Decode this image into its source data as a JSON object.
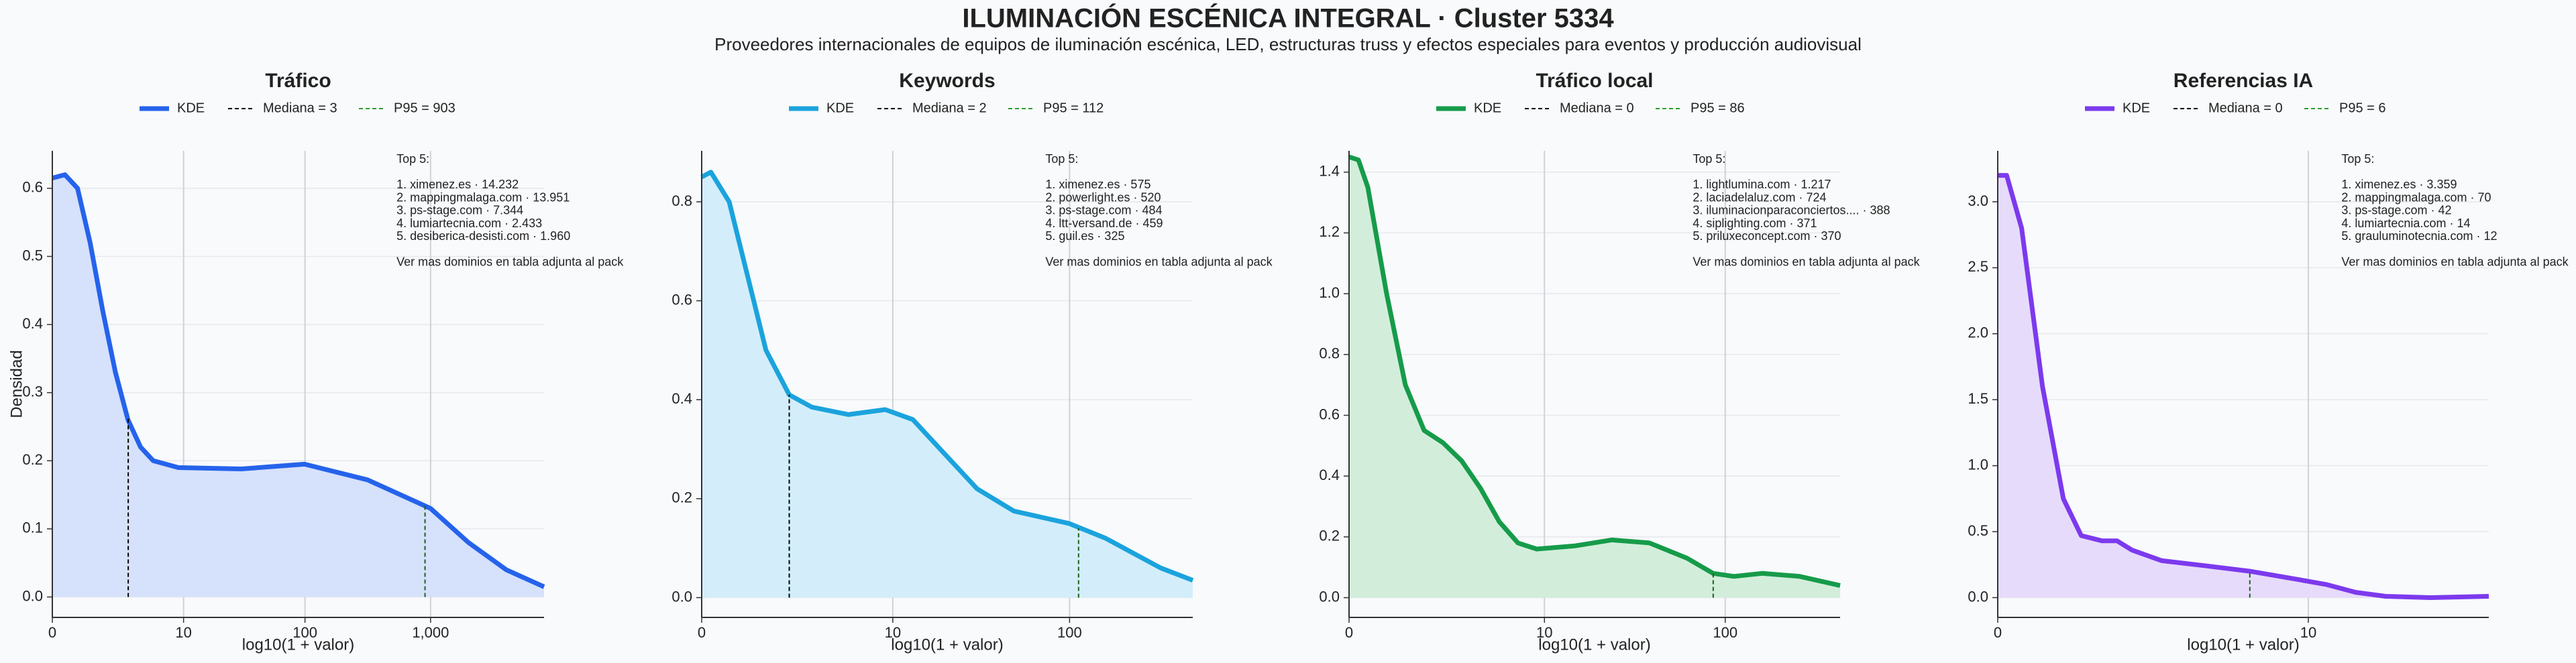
{
  "title": "ILUMINACIÓN ESCÉNICA INTEGRAL · Cluster 5334",
  "subtitle": "Proveedores internacionales de equipos de iluminación escénica, LED, estructuras truss y efectos especiales para eventos y producción audiovisual",
  "chart_data": [
    {
      "type": "area",
      "title": "Tráfico",
      "xlabel": "log10(1 + valor)",
      "ylabel": "Densidad",
      "grid": true,
      "xlim": [
        0,
        3.9
      ],
      "ylim": [
        -0.03,
        0.655
      ],
      "xticks": [
        0,
        {
          "value": 1.041,
          "label": "10"
        },
        {
          "value": 2.004,
          "label": "100"
        },
        {
          "value": 3.0,
          "label": "1,000"
        }
      ],
      "yticks": [
        {
          "value": 0,
          "label": "0.0"
        },
        0.1,
        0.2,
        0.3,
        0.4,
        0.5,
        0.6
      ],
      "x": [
        0,
        0.1,
        0.2,
        0.3,
        0.4,
        0.5,
        0.6,
        0.7,
        0.8,
        1.0,
        1.5,
        2.0,
        2.5,
        3.0,
        3.3,
        3.6,
        3.9
      ],
      "series": [
        {
          "name": "KDE",
          "color": "#2563eb",
          "fill": "#d6e1fb",
          "values": [
            0.615,
            0.62,
            0.6,
            0.52,
            0.42,
            0.33,
            0.26,
            0.22,
            0.2,
            0.19,
            0.188,
            0.195,
            0.172,
            0.13,
            0.08,
            0.04,
            0.015
          ]
        }
      ],
      "reference_lines": [
        {
          "name": "Mediana = 3",
          "x": 0.602,
          "y": 0.263,
          "color": "#000000"
        },
        {
          "name": "P95 = 903",
          "x": 2.956,
          "y": 0.135,
          "color": "#2ca02c"
        }
      ],
      "annotation": [
        "Top 5:",
        "",
        "1. ximenez.es · 14.232",
        "2. mappingmalaga.com · 13.951",
        "3. ps-stage.com · 7.344",
        "4. lumiartecnia.com · 2.433",
        "5. desiberica-desisti.com · 1.960",
        "",
        "Ver mas dominios en tabla adjunta al pack"
      ]
    },
    {
      "type": "area",
      "title": "Keywords",
      "xlabel": "log10(1 + valor)",
      "grid": true,
      "xlim": [
        0,
        2.675
      ],
      "ylim": [
        -0.04,
        0.903
      ],
      "xticks": [
        0,
        {
          "value": 1.041,
          "label": "10"
        },
        {
          "value": 2.004,
          "label": "100"
        }
      ],
      "yticks": [
        {
          "value": 0,
          "label": "0.0"
        },
        0.2,
        0.4,
        0.6,
        0.8
      ],
      "x": [
        0,
        0.05,
        0.15,
        0.25,
        0.35,
        0.477,
        0.6,
        0.8,
        1.0,
        1.15,
        1.3,
        1.5,
        1.7,
        2.0,
        2.2,
        2.5,
        2.675
      ],
      "series": [
        {
          "name": "KDE",
          "color": "#1ba3dd",
          "fill": "#d3eefa",
          "values": [
            0.85,
            0.86,
            0.8,
            0.65,
            0.5,
            0.41,
            0.385,
            0.37,
            0.38,
            0.36,
            0.3,
            0.22,
            0.175,
            0.15,
            0.12,
            0.06,
            0.035
          ]
        }
      ],
      "reference_lines": [
        {
          "name": "Mediana = 2",
          "x": 0.477,
          "y": 0.41,
          "color": "#000000"
        },
        {
          "name": "P95 = 112",
          "x": 2.053,
          "y": 0.14,
          "color": "#2ca02c"
        }
      ],
      "annotation": [
        "Top 5:",
        "",
        "1. ximenez.es · 575",
        "2. powerlight.es · 520",
        "3. ps-stage.com · 484",
        "4. ltt-versand.de · 459",
        "5. guil.es · 325",
        "",
        "Ver mas dominios en tabla adjunta al pack"
      ]
    },
    {
      "type": "area",
      "title": "Tráfico local",
      "xlabel": "log10(1 + valor)",
      "grid": true,
      "xlim": [
        0,
        2.616
      ],
      "ylim": [
        -0.065,
        1.47
      ],
      "xticks": [
        0,
        {
          "value": 1.041,
          "label": "10"
        },
        {
          "value": 2.004,
          "label": "100"
        }
      ],
      "yticks": [
        {
          "value": 0,
          "label": "0.0"
        },
        0.2,
        0.4,
        0.6,
        0.8,
        {
          "value": 1,
          "label": "1.0"
        },
        1.2,
        1.4
      ],
      "x": [
        0,
        0.05,
        0.1,
        0.2,
        0.3,
        0.4,
        0.5,
        0.6,
        0.7,
        0.8,
        0.9,
        1.0,
        1.2,
        1.4,
        1.6,
        1.8,
        1.94,
        2.05,
        2.2,
        2.4,
        2.616
      ],
      "series": [
        {
          "name": "KDE",
          "color": "#169b4a",
          "fill": "#d2eedb",
          "values": [
            1.45,
            1.44,
            1.35,
            1.0,
            0.7,
            0.55,
            0.51,
            0.45,
            0.36,
            0.25,
            0.18,
            0.16,
            0.17,
            0.19,
            0.18,
            0.13,
            0.08,
            0.07,
            0.08,
            0.07,
            0.04
          ]
        }
      ],
      "reference_lines": [
        {
          "name": "Mediana = 0",
          "x": 0,
          "y": 1.45,
          "color": "#000000"
        },
        {
          "name": "P95 = 86",
          "x": 1.94,
          "y": 0.08,
          "color": "#2ca02c"
        }
      ],
      "annotation": [
        "Top 5:",
        "",
        "1. lightlumina.com · 1.217",
        "2. laciadelaluz.com · 724",
        "3. iluminacionparaconciertos.... · 388",
        "4. siplighting.com · 371",
        "5. priluxeconcept.com · 370",
        "",
        "Ver mas dominios en tabla adjunta al pack"
      ]
    },
    {
      "type": "area",
      "title": "Referencias IA",
      "xlabel": "log10(1 + valor)",
      "grid": true,
      "xlim": [
        0,
        1.646
      ],
      "ylim": [
        -0.15,
        3.386
      ],
      "xticks": [
        0,
        {
          "value": 1.041,
          "label": "10"
        }
      ],
      "yticks": [
        {
          "value": 0,
          "label": "0.0"
        },
        0.5,
        {
          "value": 1,
          "label": "1.0"
        },
        1.5,
        {
          "value": 2,
          "label": "2.0"
        },
        2.5,
        {
          "value": 3,
          "label": "3.0"
        }
      ],
      "x": [
        0,
        0.03,
        0.08,
        0.15,
        0.22,
        0.28,
        0.35,
        0.4,
        0.45,
        0.55,
        0.7,
        0.845,
        1.0,
        1.1,
        1.2,
        1.3,
        1.45,
        1.646
      ],
      "series": [
        {
          "name": "KDE",
          "color": "#7c3aed",
          "fill": "#e7dbfb",
          "values": [
            3.2,
            3.2,
            2.8,
            1.6,
            0.75,
            0.47,
            0.43,
            0.43,
            0.36,
            0.28,
            0.24,
            0.2,
            0.14,
            0.1,
            0.04,
            0.01,
            0.0,
            0.01
          ]
        }
      ],
      "reference_lines": [
        {
          "name": "Mediana = 0",
          "x": 0,
          "y": 3.2,
          "color": "#000000"
        },
        {
          "name": "P95 = 6",
          "x": 0.845,
          "y": 0.2,
          "color": "#2ca02c"
        }
      ],
      "annotation": [
        "Top 5:",
        "",
        "1. ximenez.es · 3.359",
        "2. mappingmalaga.com · 70",
        "3. ps-stage.com · 42",
        "4. lumiartecnia.com · 14",
        "5. grauluminotecnia.com · 12",
        "",
        "Ver mas dominios en tabla adjunta al pack"
      ]
    }
  ]
}
